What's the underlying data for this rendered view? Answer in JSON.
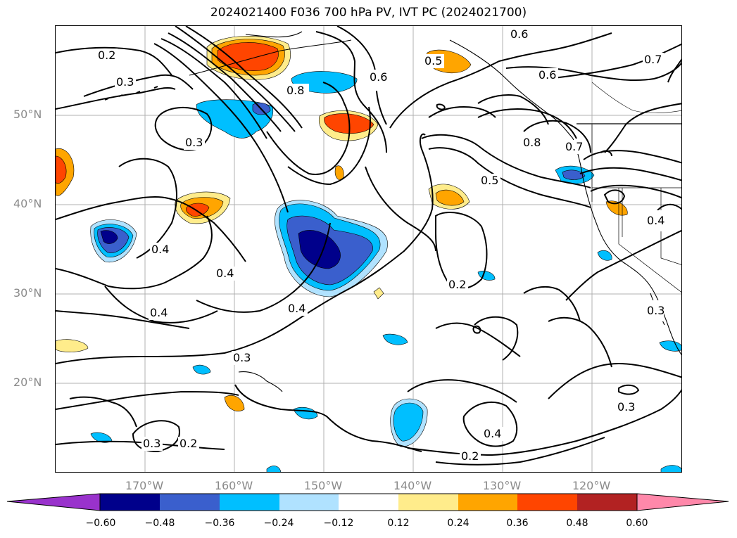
{
  "title": "2024021400 F036 700 hPa PV, IVT PC (2024021700)",
  "lat_labels": [
    "50°N",
    "40°N",
    "30°N",
    "20°N"
  ],
  "lon_labels": [
    "170°W",
    "160°W",
    "150°W",
    "140°W",
    "130°W",
    "120°W"
  ],
  "colorbar": {
    "ticks": [
      "−0.60",
      "−0.48",
      "−0.36",
      "−0.24",
      "−0.12",
      "0.12",
      "0.24",
      "0.36",
      "0.48",
      "0.60"
    ],
    "colors": [
      "#9932cc",
      "#00008b",
      "#3a5fcd",
      "#00bfff",
      "#b0e2ff",
      "#ffffff",
      "#ffec8b",
      "#ffa500",
      "#ff4500",
      "#b22222",
      "#ff88aa"
    ]
  },
  "contour_labels": [
    "0.2",
    "0.3",
    "0.8",
    "0.6",
    "0.5",
    "0.6",
    "0.7",
    "0.6",
    "0.3",
    "0.8",
    "0.7",
    "0.5",
    "0.4",
    "0.4",
    "0.4",
    "0.4",
    "0.2",
    "0.4",
    "0.3",
    "0.3",
    "0.2",
    "0.4",
    "0.2",
    "0.3",
    "0.3"
  ]
}
